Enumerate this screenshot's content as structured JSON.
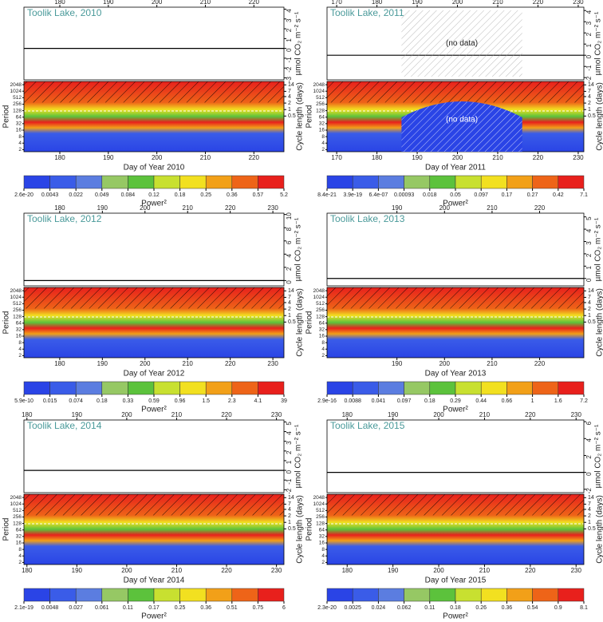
{
  "chart_data": [
    {
      "type": "wavelet",
      "title": "Toolik Lake, 2010",
      "x_label": "Day of Year 2010",
      "y_label": "µmol CO₂ m⁻² s⁻¹",
      "period_label": "Period",
      "cycle_label": "Cycle length (days)",
      "colorbar_label": "Power²",
      "xlim": [
        172.6,
        226.2
      ],
      "xticks": [
        180,
        190,
        200,
        210,
        220
      ],
      "ylim": [
        -3.2,
        4.2
      ],
      "yticks": [
        -3,
        -2,
        -1,
        0,
        1,
        2,
        3,
        4
      ],
      "period_lim": [
        1.6,
        2900
      ],
      "period_ticks": [
        2,
        4,
        8,
        16,
        32,
        64,
        128,
        256,
        512,
        1024,
        2048
      ],
      "cycle_lim": [
        0.0111,
        20.14
      ],
      "cycle_ticks": [
        0.5,
        1,
        2,
        4,
        7,
        14
      ],
      "colorbar_ticks": [
        2.6e-20,
        0.0043,
        0.022,
        0.049,
        0.084,
        0.12,
        0.18,
        0.25,
        0.36,
        0.57,
        5.2
      ],
      "colorbar_colors": [
        "#2a44e6",
        "#3a5ce8",
        "#5b7de0",
        "#96c864",
        "#5cc23c",
        "#c8e030",
        "#f2e020",
        "#f2a018",
        "#ee6418",
        "#e8201c"
      ]
    },
    {
      "type": "wavelet",
      "title": "Toolik Lake, 2011",
      "x_label": "Day of Year 2011",
      "y_label": "µmol CO₂ m⁻² s⁻¹",
      "period_label": "Period",
      "cycle_label": "Cycle length (days)",
      "colorbar_label": "Power²",
      "xlim": [
        167.6,
        231.4
      ],
      "xticks": [
        170,
        180,
        190,
        200,
        210,
        220,
        230
      ],
      "ylim": [
        -2.2,
        4.3
      ],
      "yticks": [
        -2,
        -1,
        0,
        1,
        2,
        3,
        4
      ],
      "period_lim": [
        1.6,
        2900
      ],
      "period_ticks": [
        2,
        4,
        8,
        16,
        32,
        64,
        128,
        256,
        512,
        1024,
        2048
      ],
      "cycle_lim": [
        0.0111,
        20.14
      ],
      "cycle_ticks": [
        0.5,
        1,
        2,
        4,
        7,
        14
      ],
      "colorbar_ticks": [
        8.4e-21,
        3.9e-19,
        {
          "value": 6.4e-07,
          "label": "6.4e-07"
        },
        0.00093,
        0.018,
        0.05,
        0.097,
        0.17,
        0.27,
        0.42,
        7.1
      ],
      "colorbar_colors": [
        "#2a44e6",
        "#3a5ce8",
        "#5b7de0",
        "#96c864",
        "#5cc23c",
        "#c8e030",
        "#f2e020",
        "#f2a018",
        "#ee6418",
        "#e8201c"
      ],
      "annotations": [
        "(no data)",
        "(no data)"
      ]
    },
    {
      "type": "wavelet",
      "title": "Toolik Lake, 2012",
      "x_label": "Day of Year 2012",
      "y_label": "µmol CO₂ m⁻² s⁻¹",
      "period_label": "Period",
      "cycle_label": "Cycle length (days)",
      "colorbar_label": "Power²",
      "xlim": [
        171.6,
        232.6
      ],
      "xticks": [
        180,
        190,
        200,
        210,
        220,
        230
      ],
      "ylim": [
        -0.8,
        10.2
      ],
      "yticks": [
        0,
        2,
        4,
        6,
        8,
        10
      ],
      "period_lim": [
        1.6,
        2900
      ],
      "period_ticks": [
        2,
        4,
        8,
        16,
        32,
        64,
        128,
        256,
        512,
        1024,
        2048
      ],
      "cycle_lim": [
        0.0111,
        20.14
      ],
      "cycle_ticks": [
        0.5,
        1,
        2,
        4,
        7,
        14
      ],
      "colorbar_ticks": [
        5.9e-10,
        0.015,
        0.074,
        0.18,
        0.33,
        0.59,
        0.96,
        1.5,
        2.3,
        4.1,
        39
      ],
      "colorbar_colors": [
        "#2a44e6",
        "#3a5ce8",
        "#5b7de0",
        "#96c864",
        "#5cc23c",
        "#c8e030",
        "#f2e020",
        "#f2a018",
        "#ee6418",
        "#e8201c"
      ]
    },
    {
      "type": "wavelet",
      "title": "Toolik Lake, 2013",
      "x_label": "Day of Year 2013",
      "y_label": "µmol CO₂ m⁻² s⁻¹",
      "period_label": "Period",
      "cycle_label": "Cycle length (days)",
      "colorbar_label": "Power²",
      "xlim": [
        175.3,
        229.3
      ],
      "xticks": [
        190,
        200,
        210,
        220
      ],
      "ylim": [
        -0.6,
        5.3
      ],
      "yticks": [
        0,
        1,
        2,
        3,
        4,
        5
      ],
      "period_lim": [
        1.6,
        2900
      ],
      "period_ticks": [
        2,
        4,
        8,
        16,
        32,
        64,
        128,
        256,
        512,
        1024,
        2048
      ],
      "cycle_lim": [
        0.0111,
        20.14
      ],
      "cycle_ticks": [
        0.5,
        1,
        2,
        4,
        7,
        14
      ],
      "colorbar_ticks": [
        2.9e-16,
        0.0088,
        0.041,
        0.097,
        0.18,
        0.29,
        0.44,
        0.66,
        1,
        1.6,
        7.2
      ],
      "colorbar_colors": [
        "#2a44e6",
        "#3a5ce8",
        "#5b7de0",
        "#96c864",
        "#5cc23c",
        "#c8e030",
        "#f2e020",
        "#f2a018",
        "#ee6418",
        "#e8201c"
      ]
    },
    {
      "type": "wavelet",
      "title": "Toolik Lake, 2014",
      "x_label": "Day of Year 2014",
      "y_label": "µmol CO₂ m⁻² s⁻¹",
      "period_label": "Period",
      "cycle_label": "Cycle length (days)",
      "colorbar_label": "Power²",
      "xlim": [
        179.4,
        231.5
      ],
      "xticks": [
        180,
        190,
        200,
        210,
        220,
        230
      ],
      "ylim": [
        -2.3,
        5.2
      ],
      "yticks": [
        -2,
        -1,
        0,
        1,
        2,
        3,
        4,
        5
      ],
      "period_lim": [
        1.6,
        2900
      ],
      "period_ticks": [
        2,
        4,
        8,
        16,
        32,
        64,
        128,
        256,
        512,
        1024,
        2048
      ],
      "cycle_lim": [
        0.0111,
        20.14
      ],
      "cycle_ticks": [
        0.5,
        1,
        2,
        4,
        7,
        14
      ],
      "colorbar_ticks": [
        2.1e-19,
        0.0048,
        0.027,
        0.061,
        0.11,
        0.17,
        0.25,
        0.36,
        0.51,
        0.75,
        6
      ],
      "colorbar_colors": [
        "#2a44e6",
        "#3a5ce8",
        "#5b7de0",
        "#96c864",
        "#5cc23c",
        "#c8e030",
        "#f2e020",
        "#f2a018",
        "#ee6418",
        "#e8201c"
      ]
    },
    {
      "type": "wavelet",
      "title": "Toolik Lake, 2015",
      "x_label": "Day of Year 2015",
      "y_label": "µmol CO₂ m⁻² s⁻¹",
      "period_label": "Period",
      "cycle_label": "Cycle length (days)",
      "colorbar_label": "Power²",
      "xlim": [
        175.6,
        231.7
      ],
      "xticks": [
        180,
        190,
        200,
        210,
        220,
        230
      ],
      "ylim": [
        -2.4,
        6.2
      ],
      "yticks": [
        -2,
        0,
        2,
        4,
        6
      ],
      "period_lim": [
        1.6,
        2900
      ],
      "period_ticks": [
        2,
        4,
        8,
        16,
        32,
        64,
        128,
        256,
        512,
        1024,
        2048
      ],
      "cycle_lim": [
        0.0111,
        20.14
      ],
      "cycle_ticks": [
        0.5,
        1,
        2,
        4,
        7,
        14
      ],
      "colorbar_ticks": [
        2.3e-20,
        0.0025,
        0.024,
        0.062,
        0.11,
        0.18,
        0.26,
        0.36,
        0.54,
        0.9,
        8.1
      ],
      "colorbar_colors": [
        "#2a44e6",
        "#3a5ce8",
        "#5b7de0",
        "#96c864",
        "#5cc23c",
        "#c8e030",
        "#f2e020",
        "#f2a018",
        "#ee6418",
        "#e8201c"
      ]
    }
  ]
}
